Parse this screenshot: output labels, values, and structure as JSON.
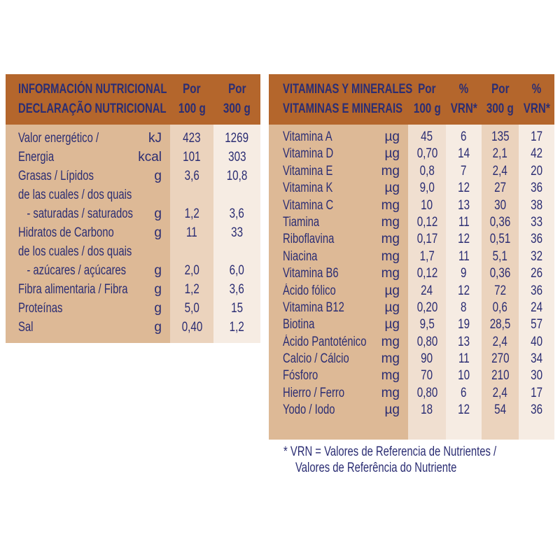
{
  "nutrition": {
    "header": {
      "title_es": "INFORMACIÓN NUTRICIONAL",
      "title_pt": "DECLARAÇÃO NUTRICIONAL",
      "col1": [
        "Por",
        "100 g"
      ],
      "col2": [
        "Por",
        "300 g"
      ]
    },
    "rows": [
      {
        "label": "Valor energético /",
        "unit": "kJ",
        "per100": "423",
        "per300": "1269"
      },
      {
        "label": "Energia",
        "unit": "kcal",
        "per100": "101",
        "per300": "303"
      },
      {
        "label": "Grasas / Lípidos",
        "unit": "g",
        "per100": "3,6",
        "per300": "10,8"
      },
      {
        "label": "de las cuales / dos quais",
        "unit": "",
        "per100": "",
        "per300": ""
      },
      {
        "label": "   - saturadas / saturados",
        "unit": "g",
        "per100": "1,2",
        "per300": "3,6"
      },
      {
        "label": "Hidratos de Carbono",
        "unit": "g",
        "per100": "11",
        "per300": "33"
      },
      {
        "label": "de los cuales / dos quais",
        "unit": "",
        "per100": "",
        "per300": ""
      },
      {
        "label": "   - azúcares / açúcares",
        "unit": "g",
        "per100": "2,0",
        "per300": "6,0"
      },
      {
        "label": "Fibra alimentaria / Fibra",
        "unit": "g",
        "per100": "1,2",
        "per300": "3,6"
      },
      {
        "label": "Proteínas",
        "unit": "g",
        "per100": "5,0",
        "per300": "15"
      },
      {
        "label": "Sal",
        "unit": "g",
        "per100": "0,40",
        "per300": "1,2"
      }
    ]
  },
  "vitamins": {
    "header": {
      "title_es": "VITAMINAS Y MINERALES",
      "title_pt": "VITAMINAS E MINERAIS",
      "col1": [
        "Por",
        "100 g"
      ],
      "col2": [
        "%",
        "VRN*"
      ],
      "col3": [
        "Por",
        "300 g"
      ],
      "col4": [
        "%",
        "VRN*"
      ]
    },
    "rows": [
      {
        "label": "Vitamina A",
        "unit": "µg",
        "per100": "45",
        "vrn100": "6",
        "per300": "135",
        "vrn300": "17"
      },
      {
        "label": "Vitamina D",
        "unit": "µg",
        "per100": "0,70",
        "vrn100": "14",
        "per300": "2,1",
        "vrn300": "42"
      },
      {
        "label": "Vitamina E",
        "unit": "mg",
        "per100": "0,8",
        "vrn100": "7",
        "per300": "2,4",
        "vrn300": "20"
      },
      {
        "label": "Vitamina K",
        "unit": "µg",
        "per100": "9,0",
        "vrn100": "12",
        "per300": "27",
        "vrn300": "36"
      },
      {
        "label": "Vitamina C",
        "unit": "mg",
        "per100": "10",
        "vrn100": "13",
        "per300": "30",
        "vrn300": "38"
      },
      {
        "label": "Tiamina",
        "unit": "mg",
        "per100": "0,12",
        "vrn100": "11",
        "per300": "0,36",
        "vrn300": "33"
      },
      {
        "label": "Riboflavina",
        "unit": "mg",
        "per100": "0,17",
        "vrn100": "12",
        "per300": "0,51",
        "vrn300": "36"
      },
      {
        "label": "Niacina",
        "unit": "mg",
        "per100": "1,7",
        "vrn100": "11",
        "per300": "5,1",
        "vrn300": "32"
      },
      {
        "label": "Vitamina B6",
        "unit": "mg",
        "per100": "0,12",
        "vrn100": "9",
        "per300": "0,36",
        "vrn300": "26"
      },
      {
        "label": "Ácido fólico",
        "unit": "µg",
        "per100": "24",
        "vrn100": "12",
        "per300": "72",
        "vrn300": "36"
      },
      {
        "label": "Vitamina B12",
        "unit": "µg",
        "per100": "0,20",
        "vrn100": "8",
        "per300": "0,6",
        "vrn300": "24"
      },
      {
        "label": "Biotina",
        "unit": "µg",
        "per100": "9,5",
        "vrn100": "19",
        "per300": "28,5",
        "vrn300": "57"
      },
      {
        "label": "Ácido Pantoténico",
        "unit": "mg",
        "per100": "0,80",
        "vrn100": "13",
        "per300": "2,4",
        "vrn300": "40"
      },
      {
        "label": "Calcio / Cálcio",
        "unit": "mg",
        "per100": "90",
        "vrn100": "11",
        "per300": "270",
        "vrn300": "34"
      },
      {
        "label": "Fósforo",
        "unit": "mg",
        "per100": "70",
        "vrn100": "10",
        "per300": "210",
        "vrn300": "30"
      },
      {
        "label": "Hierro / Ferro",
        "unit": "mg",
        "per100": "0,80",
        "vrn100": "6",
        "per300": "2,4",
        "vrn300": "17"
      },
      {
        "label": "Yodo / Iodo",
        "unit": "µg",
        "per100": "18",
        "vrn100": "12",
        "per300": "54",
        "vrn300": "36"
      }
    ],
    "footnote": [
      "* VRN = Valores de Referencia de Nutrientes /",
      "Valores de Referência do Nutriente"
    ]
  },
  "colors": {
    "header": "#b4662c",
    "text": "#2b2d73",
    "tan": "#ddb996",
    "mid": "#ebd3bd",
    "light": "#f6ece3"
  }
}
